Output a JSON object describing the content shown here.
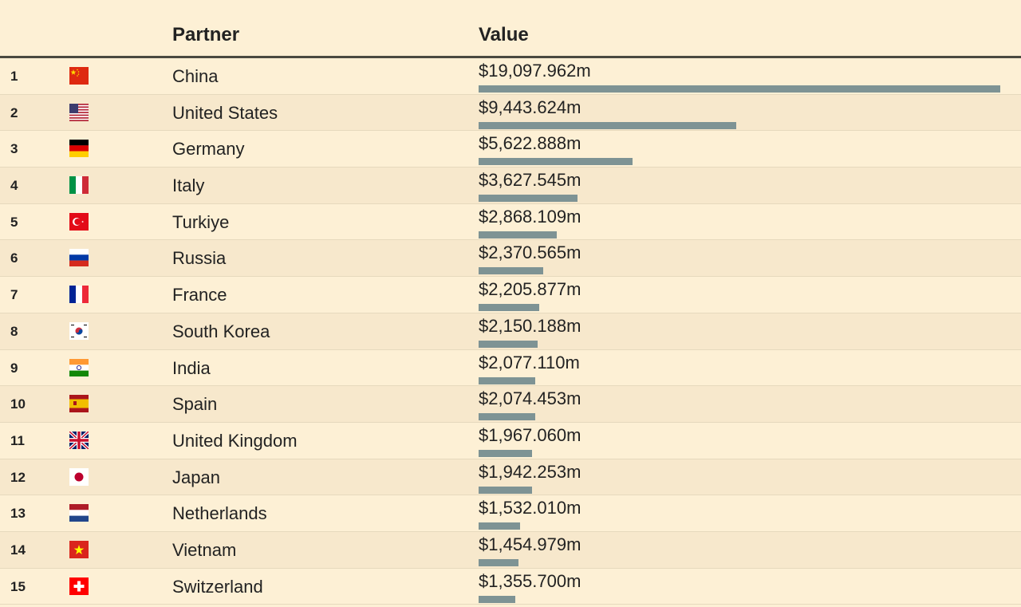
{
  "header": {
    "partner": "Partner",
    "value": "Value"
  },
  "max_value": 19097.962,
  "rows": [
    {
      "rank": "1",
      "flag": "china-flag-icon",
      "partner": "China",
      "value_label": "$19,097.962m",
      "value": 19097.962
    },
    {
      "rank": "2",
      "flag": "united-states-flag-icon",
      "partner": "United States",
      "value_label": "$9,443.624m",
      "value": 9443.624
    },
    {
      "rank": "3",
      "flag": "germany-flag-icon",
      "partner": "Germany",
      "value_label": "$5,622.888m",
      "value": 5622.888
    },
    {
      "rank": "4",
      "flag": "italy-flag-icon",
      "partner": "Italy",
      "value_label": "$3,627.545m",
      "value": 3627.545
    },
    {
      "rank": "5",
      "flag": "turkiye-flag-icon",
      "partner": "Turkiye",
      "value_label": "$2,868.109m",
      "value": 2868.109
    },
    {
      "rank": "6",
      "flag": "russia-flag-icon",
      "partner": "Russia",
      "value_label": "$2,370.565m",
      "value": 2370.565
    },
    {
      "rank": "7",
      "flag": "france-flag-icon",
      "partner": "France",
      "value_label": "$2,205.877m",
      "value": 2205.877
    },
    {
      "rank": "8",
      "flag": "south-korea-flag-icon",
      "partner": "South Korea",
      "value_label": "$2,150.188m",
      "value": 2150.188
    },
    {
      "rank": "9",
      "flag": "india-flag-icon",
      "partner": "India",
      "value_label": "$2,077.110m",
      "value": 2077.11
    },
    {
      "rank": "10",
      "flag": "spain-flag-icon",
      "partner": "Spain",
      "value_label": "$2,074.453m",
      "value": 2074.453
    },
    {
      "rank": "11",
      "flag": "united-kingdom-flag-icon",
      "partner": "United Kingdom",
      "value_label": "$1,967.060m",
      "value": 1967.06
    },
    {
      "rank": "12",
      "flag": "japan-flag-icon",
      "partner": "Japan",
      "value_label": "$1,942.253m",
      "value": 1942.253
    },
    {
      "rank": "13",
      "flag": "netherlands-flag-icon",
      "partner": "Netherlands",
      "value_label": "$1,532.010m",
      "value": 1532.01
    },
    {
      "rank": "14",
      "flag": "vietnam-flag-icon",
      "partner": "Vietnam",
      "value_label": "$1,454.979m",
      "value": 1454.979
    },
    {
      "rank": "15",
      "flag": "switzerland-flag-icon",
      "partner": "Switzerland",
      "value_label": "$1,355.700m",
      "value": 1355.7
    }
  ]
}
